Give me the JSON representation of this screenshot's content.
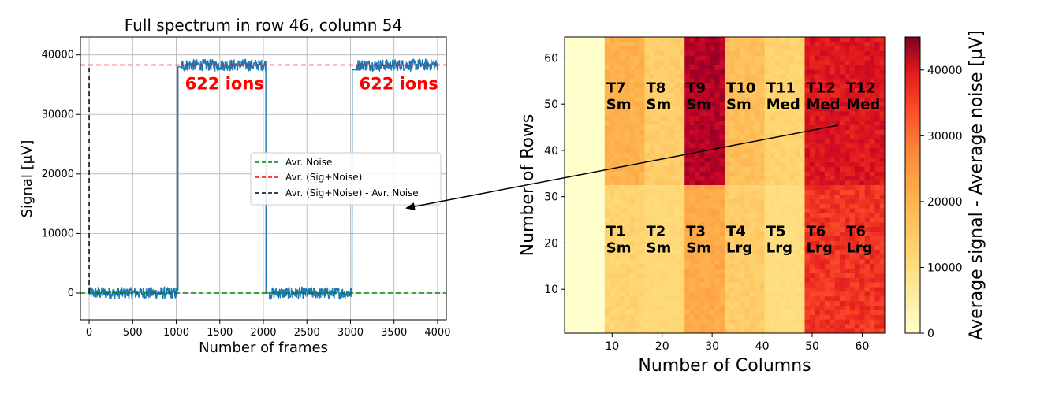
{
  "chart_data": [
    {
      "type": "line",
      "title": "Full spectrum in row 46, column 54",
      "xlabel": "Number of frames",
      "ylabel": "Signal [μV]",
      "xlim": [
        -100,
        4100
      ],
      "ylim": [
        -4500,
        43000
      ],
      "xticks": [
        "0",
        "500",
        "1000",
        "1500",
        "2000",
        "2500",
        "3000",
        "3500",
        "4000"
      ],
      "yticks": [
        "0",
        "10000",
        "20000",
        "30000",
        "40000"
      ],
      "grid": true,
      "legend_position": "center-right",
      "series": [
        {
          "name": "signal",
          "color": "#1f77b4",
          "segments": [
            {
              "from": 0,
              "to": 1020,
              "level": 0,
              "noise": 1000
            },
            {
              "from": 1020,
              "to": 1060,
              "level": 38000,
              "noise": 0
            },
            {
              "from": 1060,
              "to": 2030,
              "level": 38300,
              "noise": 1000
            },
            {
              "from": 2030,
              "to": 2070,
              "level": 0,
              "noise": 0
            },
            {
              "from": 2070,
              "to": 3020,
              "level": 0,
              "noise": 1000
            },
            {
              "from": 3020,
              "to": 3070,
              "level": 37500,
              "noise": 0
            },
            {
              "from": 3070,
              "to": 4000,
              "level": 38300,
              "noise": 1000
            }
          ]
        },
        {
          "name": "Avr. Noise",
          "color": "#008000",
          "style": "dashed",
          "y": 0
        },
        {
          "name": "Avr. (Sig+Noise)",
          "color": "#ff0000",
          "style": "dashed",
          "y": 38300
        },
        {
          "name": "Avr. (Sig+Noise) - Avr. Noise",
          "color": "#000000",
          "style": "dashed",
          "x": 0,
          "y_from": 0,
          "y_to": 38300
        }
      ],
      "annotations": [
        {
          "text": "622 ions",
          "x": 1100,
          "y": 34200,
          "color": "#ff0000"
        },
        {
          "text": "622 ions",
          "x": 3100,
          "y": 34200,
          "color": "#ff0000"
        }
      ]
    },
    {
      "type": "heatmap",
      "xlabel": "Number of Columns",
      "ylabel": "Number of Rows",
      "xlim": [
        0.5,
        64.5
      ],
      "ylim": [
        0.5,
        64.5
      ],
      "xticks": [
        "10",
        "20",
        "30",
        "40",
        "50",
        "60"
      ],
      "yticks": [
        "10",
        "20",
        "30",
        "40",
        "50",
        "60"
      ],
      "colorbar_label": "Average signal - Average noise [μV]",
      "colorbar_ticks": [
        "0",
        "10000",
        "20000",
        "30000",
        "40000"
      ],
      "colorbar_range": [
        0,
        45000
      ],
      "colormap": "YlOrRd",
      "blocks": [
        {
          "cols": [
            1,
            8
          ],
          "rows": [
            1,
            64
          ],
          "value": 0
        },
        {
          "cols": [
            9,
            16
          ],
          "rows": [
            33,
            64
          ],
          "value": 17000
        },
        {
          "cols": [
            17,
            24
          ],
          "rows": [
            33,
            64
          ],
          "value": 13000
        },
        {
          "cols": [
            25,
            32
          ],
          "rows": [
            33,
            64
          ],
          "value": 40000
        },
        {
          "cols": [
            33,
            40
          ],
          "rows": [
            33,
            64
          ],
          "value": 15000
        },
        {
          "cols": [
            41,
            48
          ],
          "rows": [
            33,
            64
          ],
          "value": 12000
        },
        {
          "cols": [
            49,
            64
          ],
          "rows": [
            33,
            64
          ],
          "value": 35000
        },
        {
          "cols": [
            9,
            16
          ],
          "rows": [
            1,
            32
          ],
          "value": 12000
        },
        {
          "cols": [
            17,
            24
          ],
          "rows": [
            1,
            32
          ],
          "value": 11000
        },
        {
          "cols": [
            25,
            32
          ],
          "rows": [
            1,
            32
          ],
          "value": 18000
        },
        {
          "cols": [
            33,
            40
          ],
          "rows": [
            1,
            32
          ],
          "value": 13000
        },
        {
          "cols": [
            41,
            48
          ],
          "rows": [
            1,
            32
          ],
          "value": 10000
        },
        {
          "cols": [
            49,
            64
          ],
          "rows": [
            1,
            32
          ],
          "value": 31000
        }
      ],
      "region_labels": [
        {
          "line1": "T7",
          "line2": "Sm",
          "col": 8.5,
          "row": 52.5
        },
        {
          "line1": "T8",
          "line2": "Sm",
          "col": 16.5,
          "row": 52.5
        },
        {
          "line1": "T9",
          "line2": "Sm",
          "col": 24.5,
          "row": 52.5
        },
        {
          "line1": "T10",
          "line2": "Sm",
          "col": 32.5,
          "row": 52.5
        },
        {
          "line1": "T11",
          "line2": "Med",
          "col": 40.5,
          "row": 52.5
        },
        {
          "line1": "T12",
          "line2": "Med",
          "col": 48.5,
          "row": 52.5
        },
        {
          "line1": "T12",
          "line2": "Med",
          "col": 56.5,
          "row": 52.5
        },
        {
          "line1": "T1",
          "line2": "Sm",
          "col": 8.5,
          "row": 21.5
        },
        {
          "line1": "T2",
          "line2": "Sm",
          "col": 16.5,
          "row": 21.5
        },
        {
          "line1": "T3",
          "line2": "Sm",
          "col": 24.5,
          "row": 21.5
        },
        {
          "line1": "T4",
          "line2": "Lrg",
          "col": 32.5,
          "row": 21.5
        },
        {
          "line1": "T5",
          "line2": "Lrg",
          "col": 40.5,
          "row": 21.5
        },
        {
          "line1": "T6",
          "line2": "Lrg",
          "col": 48.5,
          "row": 21.5
        },
        {
          "line1": "T6",
          "line2": "Lrg",
          "col": 56.5,
          "row": 21.5
        }
      ]
    }
  ]
}
